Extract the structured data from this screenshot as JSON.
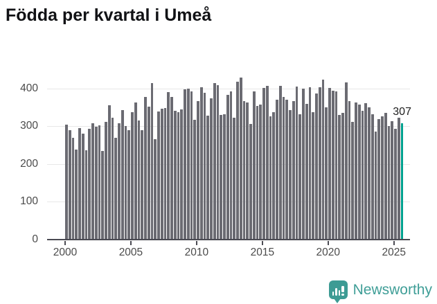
{
  "title": "Födda per kvartal i Umeå",
  "colors": {
    "bar": "#6b6b72",
    "highlight": "#00a18f",
    "brand_teal": "#3d9b94",
    "gridline": "#e7e7e7",
    "axis": "#4a4a52",
    "title_text": "#111215",
    "tick_text": "#4a4a4a"
  },
  "footer": {
    "brand": "Newsworthy",
    "logo_icon": "newsworthy-speech-bubble-chart-icon"
  },
  "chart_data": {
    "type": "bar",
    "title": "Födda per kvartal i Umeå",
    "xlabel": "",
    "ylabel": "",
    "grid": "horizontal",
    "legend": "none",
    "ylim": [
      0,
      440
    ],
    "y_ticks": [
      0,
      100,
      200,
      300,
      400
    ],
    "x_tick_labels": [
      "2000",
      "2005",
      "2010",
      "2015",
      "2020",
      "2025"
    ],
    "x_tick_indices": [
      0,
      20,
      40,
      60,
      80,
      100
    ],
    "highlight_index": 102,
    "highlight_value_label": "307",
    "categories": [
      "2000Q1",
      "2000Q2",
      "2000Q3",
      "2000Q4",
      "2001Q1",
      "2001Q2",
      "2001Q3",
      "2001Q4",
      "2002Q1",
      "2002Q2",
      "2002Q3",
      "2002Q4",
      "2003Q1",
      "2003Q2",
      "2003Q3",
      "2003Q4",
      "2004Q1",
      "2004Q2",
      "2004Q3",
      "2004Q4",
      "2005Q1",
      "2005Q2",
      "2005Q3",
      "2005Q4",
      "2006Q1",
      "2006Q2",
      "2006Q3",
      "2006Q4",
      "2007Q1",
      "2007Q2",
      "2007Q3",
      "2007Q4",
      "2008Q1",
      "2008Q2",
      "2008Q3",
      "2008Q4",
      "2009Q1",
      "2009Q2",
      "2009Q3",
      "2009Q4",
      "2010Q1",
      "2010Q2",
      "2010Q3",
      "2010Q4",
      "2011Q1",
      "2011Q2",
      "2011Q3",
      "2011Q4",
      "2012Q1",
      "2012Q2",
      "2012Q3",
      "2012Q4",
      "2013Q1",
      "2013Q2",
      "2013Q3",
      "2013Q4",
      "2014Q1",
      "2014Q2",
      "2014Q3",
      "2014Q4",
      "2015Q1",
      "2015Q2",
      "2015Q3",
      "2015Q4",
      "2016Q1",
      "2016Q2",
      "2016Q3",
      "2016Q4",
      "2017Q1",
      "2017Q2",
      "2017Q3",
      "2017Q4",
      "2018Q1",
      "2018Q2",
      "2018Q3",
      "2018Q4",
      "2019Q1",
      "2019Q2",
      "2019Q3",
      "2019Q4",
      "2020Q1",
      "2020Q2",
      "2020Q3",
      "2020Q4",
      "2021Q1",
      "2021Q2",
      "2021Q3",
      "2021Q4",
      "2022Q1",
      "2022Q2",
      "2022Q3",
      "2022Q4",
      "2023Q1",
      "2023Q2",
      "2023Q3",
      "2023Q4",
      "2024Q1",
      "2024Q2",
      "2024Q3",
      "2024Q4",
      "2025Q1",
      "2025Q2",
      "2025Q3"
    ],
    "values": [
      303,
      288,
      268,
      237,
      293,
      278,
      235,
      292,
      306,
      297,
      300,
      232,
      310,
      354,
      321,
      267,
      306,
      341,
      298,
      287,
      336,
      361,
      314,
      287,
      375,
      351,
      412,
      264,
      338,
      345,
      346,
      388,
      376,
      339,
      336,
      343,
      396,
      398,
      390,
      315,
      364,
      401,
      387,
      327,
      373,
      413,
      407,
      329,
      330,
      382,
      391,
      321,
      416,
      428,
      364,
      361,
      304,
      390,
      352,
      355,
      399,
      405,
      324,
      335,
      369,
      405,
      376,
      369,
      341,
      365,
      404,
      330,
      398,
      358,
      402,
      335,
      385,
      401,
      421,
      349,
      399,
      392,
      390,
      328,
      333,
      415,
      364,
      310,
      361,
      356,
      339,
      360,
      349,
      330,
      284,
      318,
      324,
      333,
      298,
      312,
      292,
      321,
      307
    ]
  }
}
